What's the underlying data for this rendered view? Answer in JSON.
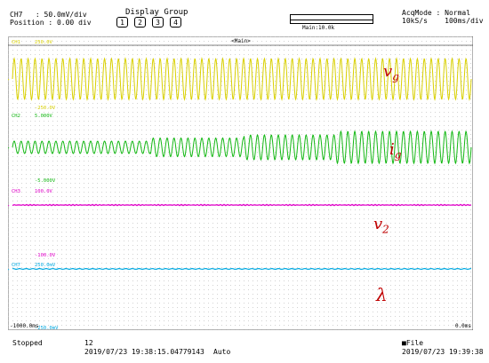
{
  "header": {
    "channel_line": "CH7   : 50.0mV/div",
    "position_line": "Position : 0.00 div",
    "display_group_label": "Display Group",
    "display_group_buttons": [
      "1",
      "2",
      "3",
      "4"
    ],
    "main_label": "Main:10.0k",
    "acqmode_line": "AcqMode : Normal",
    "rate_line": "10kS/s    100ms/div"
  },
  "scope": {
    "zoom_tag": "<Main>",
    "channels": [
      {
        "id": "CH1",
        "top": "250.0V",
        "bottom": "-250.0V",
        "color": "#d9d000"
      },
      {
        "id": "CH2",
        "top": "5.000V",
        "bottom": "-5.000V",
        "color": "#14b814"
      },
      {
        "id": "CH3",
        "top": "100.0V",
        "bottom": "-100.0V",
        "color": "#e000c8"
      },
      {
        "id": "CH7",
        "top": "250.0mV",
        "bottom": "-250.0mV",
        "color": "#00a8e0"
      }
    ],
    "time_left": "-1000.0ms",
    "time_right": "0.0ms",
    "signal_labels": {
      "vg": "v",
      "vg_sub": "g",
      "ig": "i",
      "ig_sub": "g",
      "v2": "v",
      "v2_sub": "2",
      "lambda": "λ"
    }
  },
  "footer": {
    "status": "Stopped",
    "record_no": "12",
    "start_time": "2019/07/23 19:38:15.04779143",
    "trigger_mode": "Auto",
    "file_label": "File",
    "end_time": "2019/07/23 19:39:38"
  }
}
